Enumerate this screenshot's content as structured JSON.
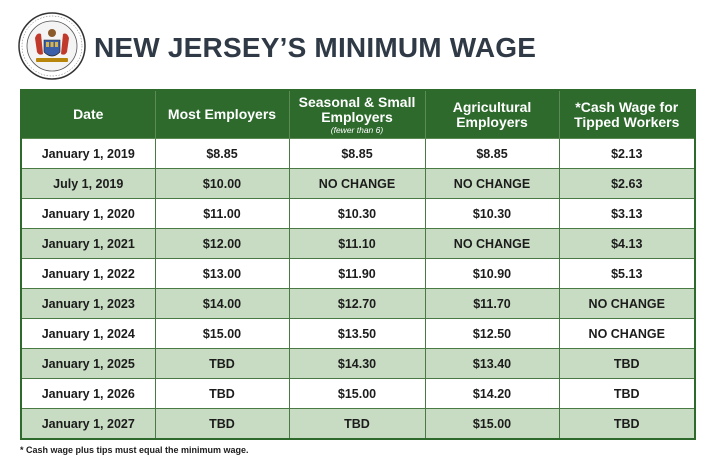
{
  "title": "NEW JERSEY’S MINIMUM WAGE",
  "seal_text": "THE GREAT SEAL OF THE STATE OF NEW JERSEY",
  "colors": {
    "header_green": "#2d6a2c",
    "alt_row": "#c7dcc2",
    "title": "#2f3a46"
  },
  "table": {
    "headers": [
      {
        "label": "Date",
        "sub": ""
      },
      {
        "label": "Most Employers",
        "sub": ""
      },
      {
        "label": "Seasonal & Small Employers",
        "sub": "(fewer than 6)"
      },
      {
        "label": "Agricultural Employers",
        "sub": ""
      },
      {
        "label": "*Cash Wage for Tipped Workers",
        "sub": ""
      }
    ],
    "rows": [
      [
        "January 1, 2019",
        "$8.85",
        "$8.85",
        "$8.85",
        "$2.13"
      ],
      [
        "July 1, 2019",
        "$10.00",
        "NO CHANGE",
        "NO CHANGE",
        "$2.63"
      ],
      [
        "January 1, 2020",
        "$11.00",
        "$10.30",
        "$10.30",
        "$3.13"
      ],
      [
        "January 1, 2021",
        "$12.00",
        "$11.10",
        "NO CHANGE",
        "$4.13"
      ],
      [
        "January 1, 2022",
        "$13.00",
        "$11.90",
        "$10.90",
        "$5.13"
      ],
      [
        "January 1, 2023",
        "$14.00",
        "$12.70",
        "$11.70",
        "NO CHANGE"
      ],
      [
        "January 1, 2024",
        "$15.00",
        "$13.50",
        "$12.50",
        "NO CHANGE"
      ],
      [
        "January 1, 2025",
        "TBD",
        "$14.30",
        "$13.40",
        "TBD"
      ],
      [
        "January 1, 2026",
        "TBD",
        "$15.00",
        "$14.20",
        "TBD"
      ],
      [
        "January 1, 2027",
        "TBD",
        "TBD",
        "$15.00",
        "TBD"
      ]
    ]
  },
  "footnote": "* Cash wage plus tips must equal the minimum wage."
}
